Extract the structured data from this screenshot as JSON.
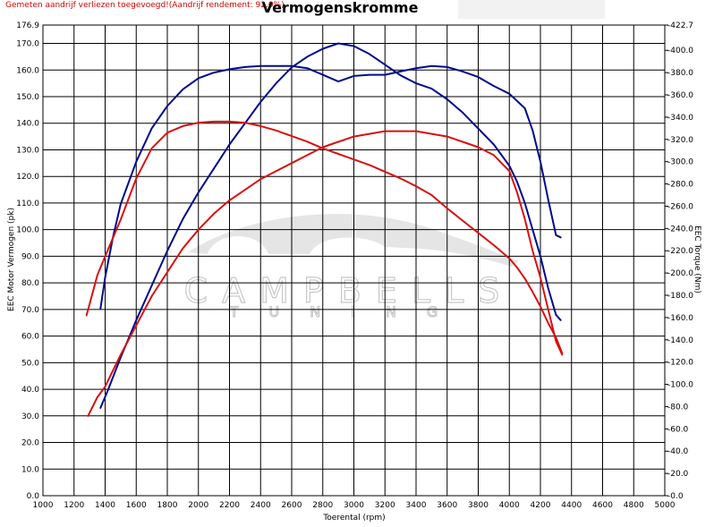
{
  "header": {
    "warning": "Gemeten aandrijf verliezen toegevoegd!(Aandrijf rendement: 92.0%)",
    "title": "Vermogenskromme"
  },
  "watermark": {
    "line1": "CAMPBELLS",
    "line2": "TUNING"
  },
  "colors": {
    "tuned": "#000a8c",
    "stock": "#d81010",
    "grid": "#000000",
    "watermark": "#c8c8c8"
  },
  "chart_data": {
    "type": "line",
    "title": "Vermogenskromme",
    "xlabel": "Toerental (rpm)",
    "ylabel_left": "EEC Motor Vermogen (pk)",
    "ylabel_right": "EEC Torque (Nm)",
    "xlim": [
      1000,
      5000
    ],
    "ylim_left": [
      0.0,
      176.9
    ],
    "ylim_right": [
      0.0,
      422.7
    ],
    "x_ticks": [
      "1000",
      "1200",
      "1400",
      "1600",
      "1800",
      "2000",
      "2200",
      "2400",
      "2600",
      "2800",
      "3000",
      "3200",
      "3400",
      "3600",
      "3800",
      "4000",
      "4200",
      "4400",
      "4600",
      "4800",
      "5000"
    ],
    "y_left_ticks": [
      "0.0",
      "10.0",
      "20.0",
      "30.0",
      "40.0",
      "50.0",
      "60.0",
      "70.0",
      "80.0",
      "90.0",
      "100.0",
      "110.0",
      "120.0",
      "130.0",
      "140.0",
      "150.0",
      "160.0",
      "170.0",
      "176.9"
    ],
    "y_right_ticks": [
      "0.0",
      "20.0",
      "40.0",
      "60.0",
      "80.0",
      "100.0",
      "120.0",
      "140.0",
      "160.0",
      "180.0",
      "200.0",
      "220.0",
      "240.0",
      "260.0",
      "280.0",
      "300.0",
      "320.0",
      "340.0",
      "360.0",
      "380.0",
      "400.0",
      "422.7"
    ],
    "grid": true,
    "series": [
      {
        "color": "#000a8c",
        "axis": "left",
        "x": [
          1370,
          1420,
          1500,
          1600,
          1700,
          1800,
          1900,
          2000,
          2100,
          2200,
          2300,
          2400,
          2500,
          2600,
          2700,
          2800,
          2900,
          3000,
          3100,
          3200,
          3300,
          3400,
          3500,
          3600,
          3700,
          3800,
          3900,
          4000,
          4050,
          4100,
          4150,
          4200,
          4250,
          4300,
          4330
        ],
        "y": [
          33,
          40,
          52,
          66,
          79,
          92,
          104,
          114,
          123,
          132,
          140,
          148,
          155,
          161,
          165,
          168,
          170,
          169,
          166,
          162,
          158,
          155,
          153,
          149,
          144,
          138,
          132,
          124,
          118,
          110,
          100,
          90,
          78,
          68,
          66
        ]
      },
      {
        "color": "#000a8c",
        "axis": "right",
        "x": [
          1370,
          1400,
          1450,
          1500,
          1600,
          1700,
          1800,
          1900,
          2000,
          2100,
          2200,
          2300,
          2400,
          2500,
          2600,
          2700,
          2800,
          2900,
          3000,
          3100,
          3200,
          3300,
          3400,
          3500,
          3600,
          3700,
          3800,
          3900,
          4000,
          4100,
          4150,
          4200,
          4250,
          4300,
          4330
        ],
        "y": [
          168,
          196,
          232,
          262,
          300,
          330,
          350,
          365,
          375,
          380,
          383,
          385,
          386,
          386,
          386,
          384,
          378,
          372,
          377,
          378,
          378,
          381,
          384,
          386,
          385,
          381,
          376,
          368,
          361,
          348,
          328,
          300,
          266,
          234,
          232
        ]
      },
      {
        "color": "#d81010",
        "axis": "left",
        "x": [
          1290,
          1350,
          1400,
          1500,
          1600,
          1700,
          1800,
          1900,
          2000,
          2100,
          2200,
          2300,
          2400,
          2500,
          2600,
          2700,
          2800,
          2900,
          3000,
          3100,
          3200,
          3300,
          3400,
          3500,
          3600,
          3700,
          3800,
          3900,
          4000,
          4050,
          4100,
          4150,
          4200,
          4250,
          4300,
          4340
        ],
        "y": [
          30,
          37,
          41,
          53,
          64,
          75,
          84,
          93,
          100,
          106,
          111,
          115,
          119,
          122,
          125,
          128,
          131,
          133,
          135,
          136,
          137,
          137,
          137,
          136,
          135,
          133,
          131,
          128,
          122,
          114,
          104,
          92,
          82,
          70,
          58,
          53
        ]
      },
      {
        "color": "#d81010",
        "axis": "right",
        "x": [
          1280,
          1300,
          1350,
          1400,
          1500,
          1600,
          1700,
          1800,
          1900,
          2000,
          2100,
          2200,
          2300,
          2400,
          2500,
          2600,
          2700,
          2800,
          2900,
          3000,
          3100,
          3200,
          3300,
          3400,
          3500,
          3600,
          3700,
          3800,
          3900,
          4000,
          4050,
          4100,
          4150,
          4200,
          4250,
          4300,
          4340
        ],
        "y": [
          162,
          172,
          198,
          215,
          248,
          285,
          312,
          326,
          332,
          335,
          336,
          336,
          335,
          332,
          328,
          323,
          318,
          312,
          307,
          302,
          297,
          291,
          285,
          278,
          270,
          258,
          247,
          236,
          225,
          213,
          205,
          195,
          183,
          170,
          155,
          142,
          128
        ]
      }
    ]
  }
}
